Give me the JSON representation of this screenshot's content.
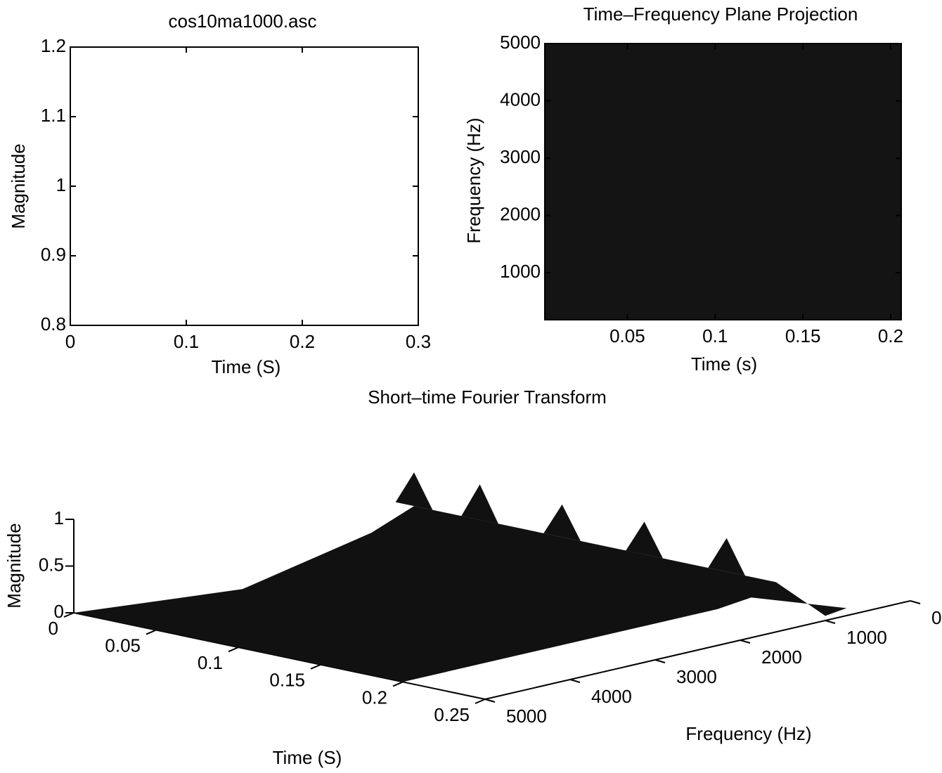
{
  "chart_data": [
    {
      "type": "line",
      "title": "cos10ma1000.asc",
      "xlabel": "Time (S)",
      "ylabel": "Magnitude",
      "xlim": [
        0,
        0.3
      ],
      "xticks": [
        0,
        0.1,
        0.2,
        0.3
      ],
      "ylim": [
        0.8,
        1.2
      ],
      "yticks": [
        0.8,
        0.9,
        1,
        1.1,
        1.2
      ]
    },
    {
      "type": "heatmap",
      "title": "Time–Frequency Plane Projection",
      "xlabel": "Time (s)",
      "ylabel": "Frequency (Hz)",
      "xlim": [
        0.003,
        0.206
      ],
      "xticks": [
        0.05,
        0.1,
        0.15,
        0.2
      ],
      "ylim": [
        180,
        5000
      ],
      "yticks": [
        1000,
        2000,
        3000,
        4000,
        5000
      ],
      "color": "#141414"
    },
    {
      "type": "surface",
      "title": "Short–time Fourier Transform",
      "xlabel": "Time (S)",
      "ylabel": "Frequency (Hz)",
      "zlabel": "Magnitude",
      "xlim": [
        0,
        0.25
      ],
      "xticks": [
        0,
        0.05,
        0.1,
        0.15,
        0.2,
        0.25
      ],
      "ylim": [
        0,
        5000
      ],
      "yticks": [
        0,
        1000,
        2000,
        3000,
        4000,
        5000
      ],
      "zlim": [
        0,
        1
      ],
      "zticks": [
        0,
        0.5,
        1
      ],
      "color": "#111111",
      "series": [
        {
          "x": [
            0,
            0.04,
            0.09,
            0.14,
            0.19
          ],
          "y": [
            1000,
            1000,
            1000,
            1000,
            1000
          ],
          "values": [
            0.66,
            0.68,
            0.65,
            0.65,
            0.66
          ]
        }
      ]
    }
  ]
}
